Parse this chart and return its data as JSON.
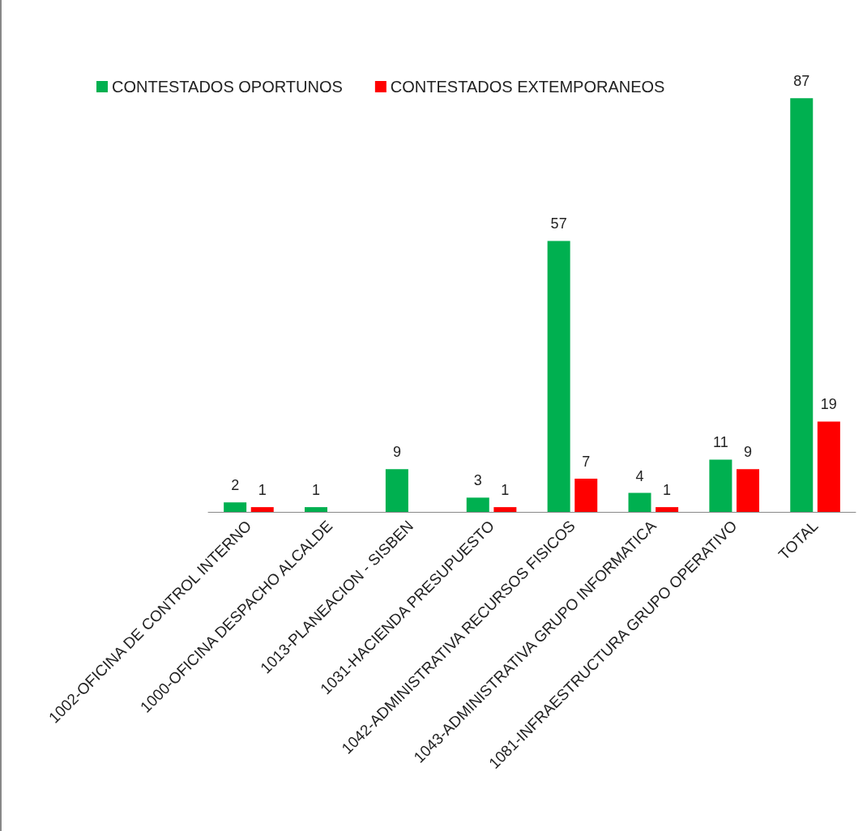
{
  "chart_data": {
    "type": "bar",
    "categories": [
      "1002-OFICINA DE CONTROL INTERNO",
      "1000-OFICINA DESPACHO ALCALDE",
      "1013-PLANEACION - SISBEN",
      "1031-HACIENDA PRESUPUESTO",
      "1042-ADMINISTRATIVA RECURSOS FISICOS",
      "1043-ADMINISTRATIVA GRUPO INFORMATICA",
      "1081-INFRAESTRUCTURA GRUPO OPERATIVO",
      "TOTAL"
    ],
    "series": [
      {
        "name": "CONTESTADOS OPORTUNOS",
        "color": "#00b050",
        "values": [
          2,
          1,
          9,
          3,
          57,
          4,
          11,
          87
        ]
      },
      {
        "name": "CONTESTADOS EXTEMPORANEOS",
        "color": "#ff0000",
        "values": [
          1,
          null,
          null,
          1,
          7,
          1,
          9,
          19
        ]
      }
    ],
    "data_labels": true,
    "legend": "top left",
    "tick_labels": "x",
    "grid": false
  }
}
